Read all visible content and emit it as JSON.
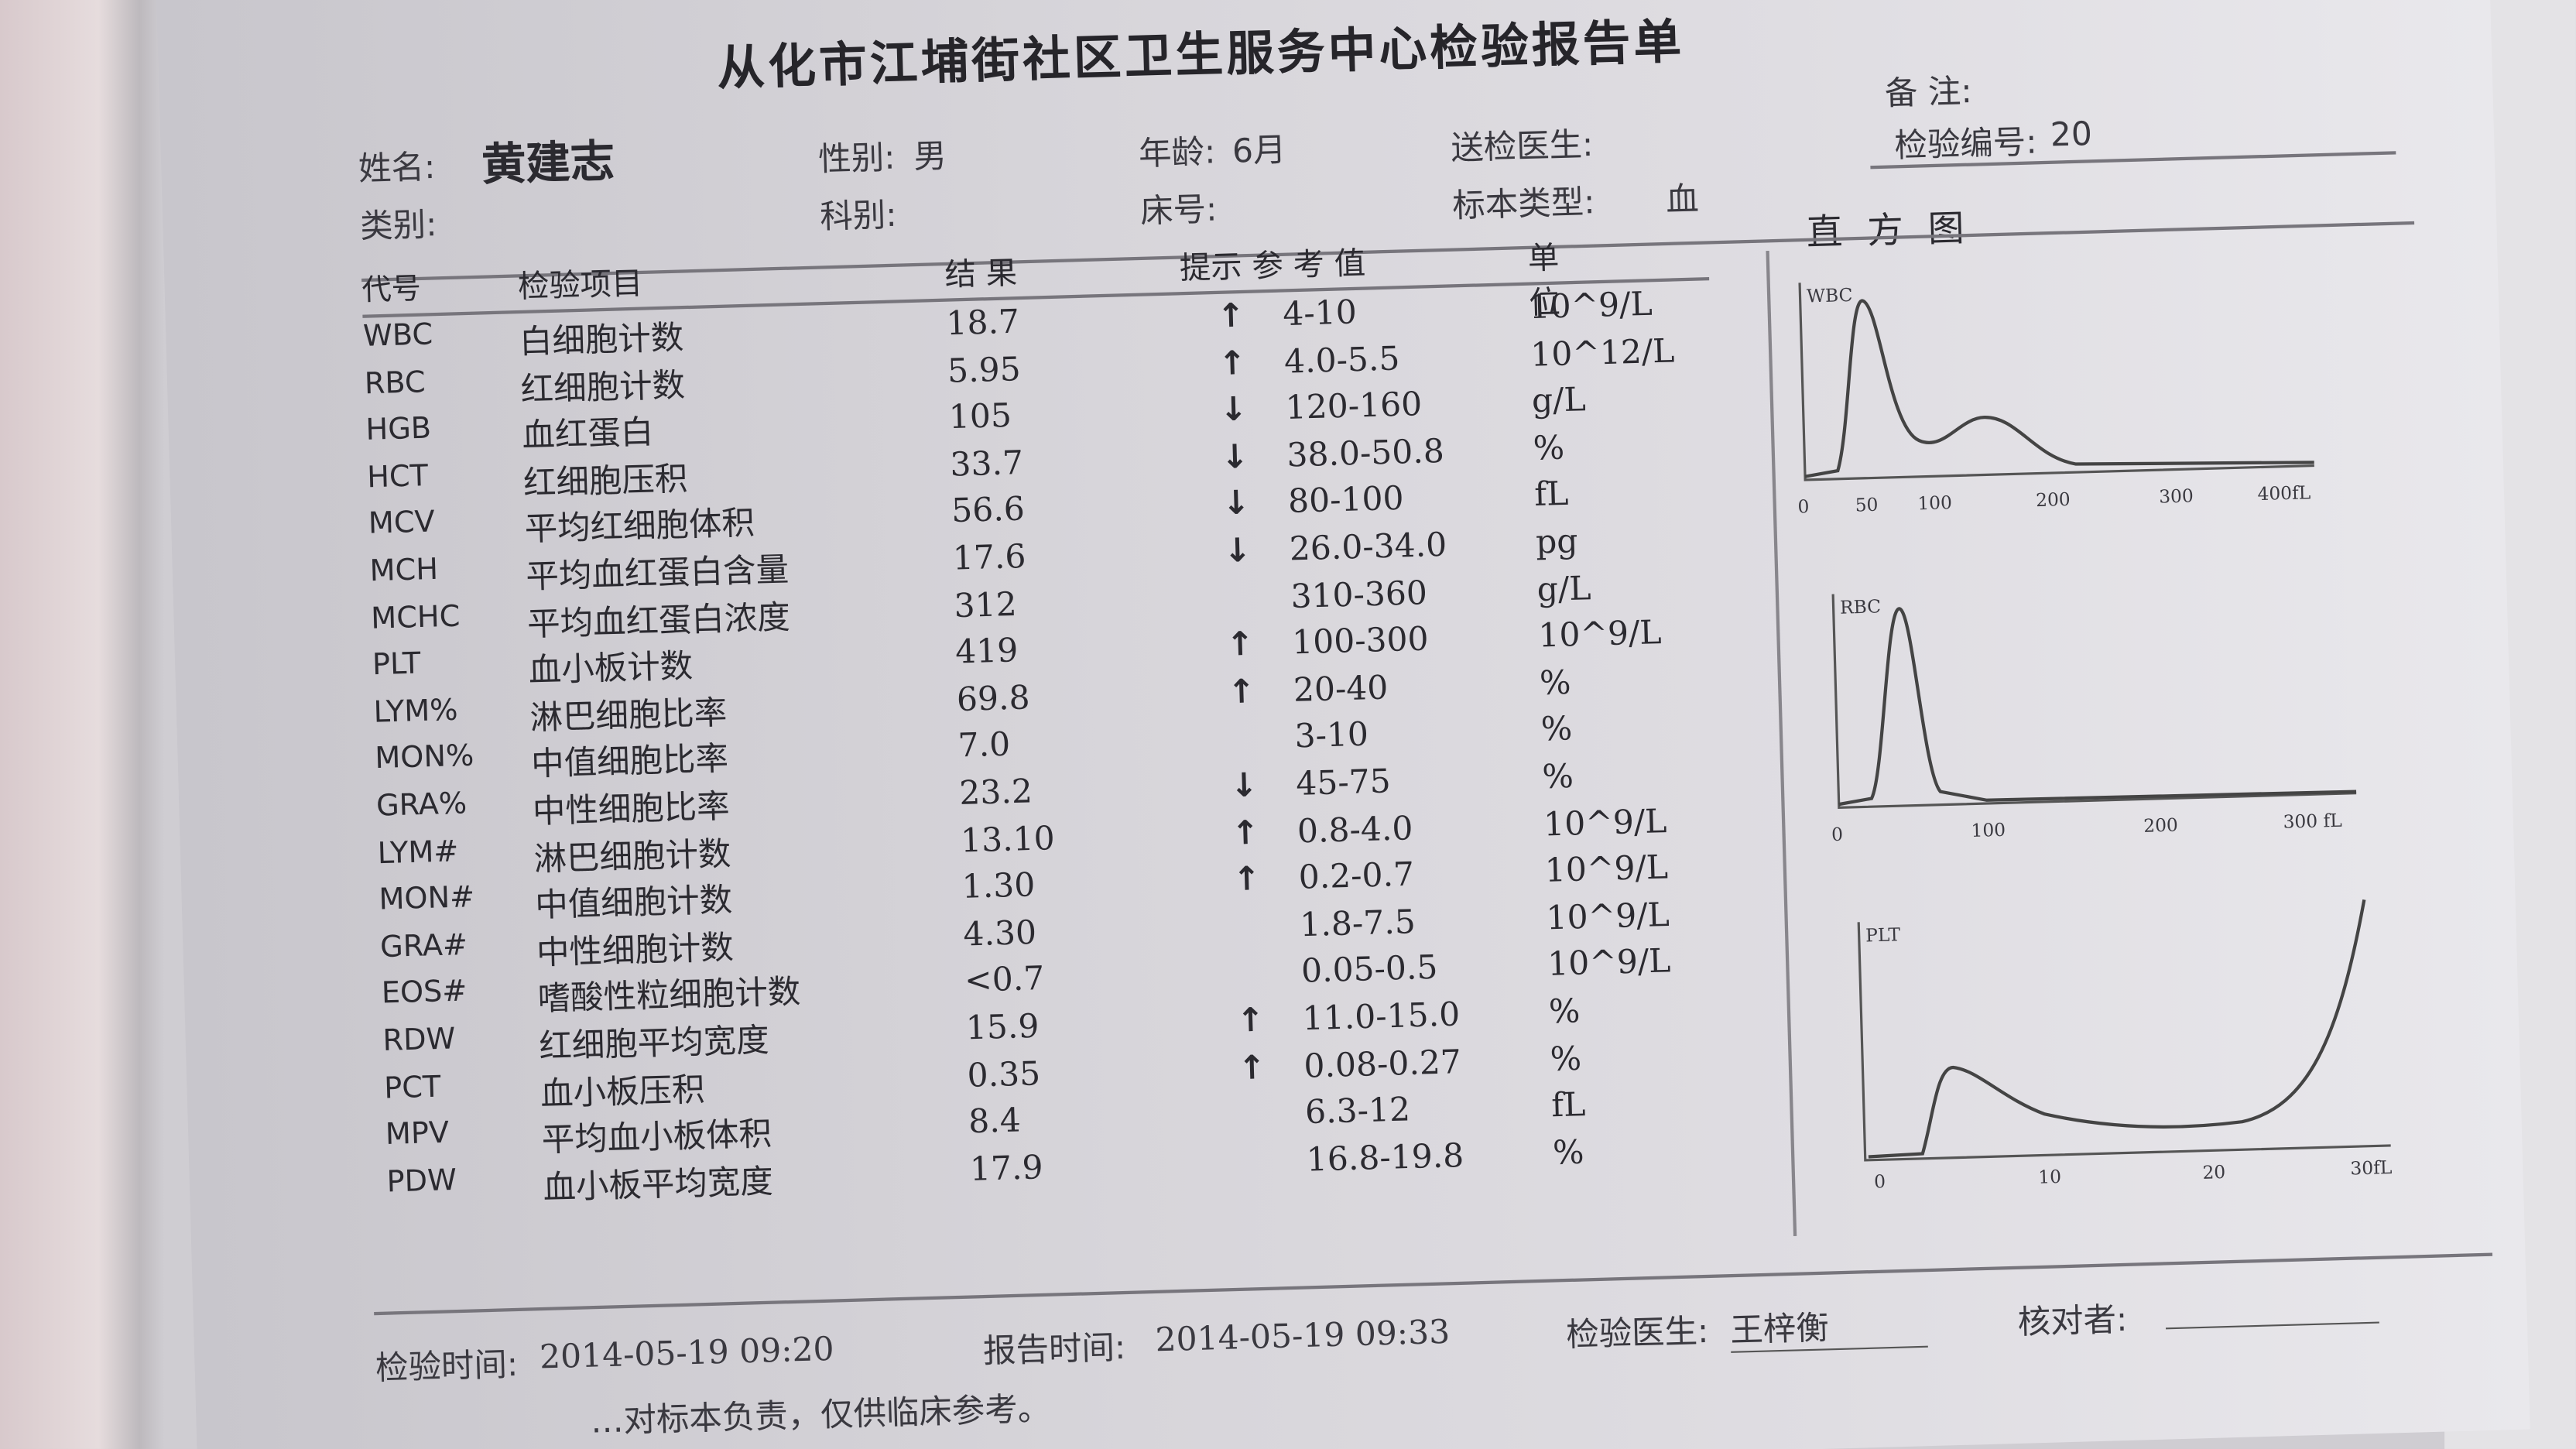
{
  "title": "从化市江埔街社区卫生服务中心检验报告单",
  "remarks_label": "备    注:",
  "patient": {
    "name_label": "姓名:",
    "name": "黄建志",
    "sex_label": "性别:",
    "sex": "男",
    "age_label": "年龄:",
    "age": "6月",
    "doctor_label": "送检医生:",
    "doctor": "",
    "sample_no_label": "检验编号:",
    "sample_no": "20",
    "category_label": "类别:",
    "dept_label": "科别:",
    "bed_label": "床号:",
    "specimen_label": "标本类型:",
    "specimen": "血"
  },
  "table": {
    "headers": {
      "code": "代号",
      "item": "检验项目",
      "result": "结    果",
      "flag_ref": "提示 参 考 值",
      "unit": "单位"
    },
    "rows": [
      {
        "code": "WBC",
        "item": "白细胞计数",
        "result": "18.7",
        "flag": "↑",
        "ref": "4-10",
        "unit": "10^9/L"
      },
      {
        "code": "RBC",
        "item": "红细胞计数",
        "result": "5.95",
        "flag": "↑",
        "ref": "4.0-5.5",
        "unit": "10^12/L"
      },
      {
        "code": "HGB",
        "item": "血红蛋白",
        "result": "105",
        "flag": "↓",
        "ref": "120-160",
        "unit": "g/L"
      },
      {
        "code": "HCT",
        "item": "红细胞压积",
        "result": "33.7",
        "flag": "↓",
        "ref": "38.0-50.8",
        "unit": "%"
      },
      {
        "code": "MCV",
        "item": "平均红细胞体积",
        "result": "56.6",
        "flag": "↓",
        "ref": "80-100",
        "unit": "fL"
      },
      {
        "code": "MCH",
        "item": "平均血红蛋白含量",
        "result": "17.6",
        "flag": "↓",
        "ref": "26.0-34.0",
        "unit": "pg"
      },
      {
        "code": "MCHC",
        "item": "平均血红蛋白浓度",
        "result": "312",
        "flag": "",
        "ref": "310-360",
        "unit": "g/L"
      },
      {
        "code": "PLT",
        "item": "血小板计数",
        "result": "419",
        "flag": "↑",
        "ref": "100-300",
        "unit": "10^9/L"
      },
      {
        "code": "LYM%",
        "item": "淋巴细胞比率",
        "result": "69.8",
        "flag": "↑",
        "ref": "20-40",
        "unit": "%"
      },
      {
        "code": "MON%",
        "item": "中值细胞比率",
        "result": "7.0",
        "flag": "",
        "ref": "3-10",
        "unit": "%"
      },
      {
        "code": "GRA%",
        "item": "中性细胞比率",
        "result": "23.2",
        "flag": "↓",
        "ref": "45-75",
        "unit": "%"
      },
      {
        "code": "LYM#",
        "item": "淋巴细胞计数",
        "result": "13.10",
        "flag": "↑",
        "ref": "0.8-4.0",
        "unit": "10^9/L"
      },
      {
        "code": "MON#",
        "item": "中值细胞计数",
        "result": "1.30",
        "flag": "↑",
        "ref": "0.2-0.7",
        "unit": "10^9/L"
      },
      {
        "code": "GRA#",
        "item": "中性细胞计数",
        "result": "4.30",
        "flag": "",
        "ref": "1.8-7.5",
        "unit": "10^9/L"
      },
      {
        "code": "EOS#",
        "item": "嗜酸性粒细胞计数",
        "result": "<0.7",
        "flag": "",
        "ref": "0.05-0.5",
        "unit": "10^9/L"
      },
      {
        "code": "RDW",
        "item": "红细胞平均宽度",
        "result": "15.9",
        "flag": "↑",
        "ref": "11.0-15.0",
        "unit": "%"
      },
      {
        "code": "PCT",
        "item": "血小板压积",
        "result": "0.35",
        "flag": "↑",
        "ref": "0.08-0.27",
        "unit": "%"
      },
      {
        "code": "MPV",
        "item": "平均血小板体积",
        "result": "8.4",
        "flag": "",
        "ref": "6.3-12",
        "unit": "fL"
      },
      {
        "code": "PDW",
        "item": "血小板平均宽度",
        "result": "17.9",
        "flag": "",
        "ref": "16.8-19.8",
        "unit": "%"
      }
    ]
  },
  "histogram": {
    "title": "直 方 图",
    "wbc": {
      "label": "WBC",
      "ticks": [
        "0",
        "50",
        "100",
        "200",
        "300",
        "400fL"
      ]
    },
    "rbc": {
      "label": "RBC",
      "ticks": [
        "0",
        "100",
        "200",
        "300 fL"
      ]
    },
    "plt": {
      "label": "PLT",
      "ticks": [
        "0",
        "10",
        "20",
        "30fL"
      ]
    }
  },
  "footer": {
    "test_time_label": "检验时间:",
    "test_time": "2014-05-19 09:20",
    "report_time_label": "报告时间:",
    "report_time": "2014-05-19 09:33",
    "tester_label": "检验医生:",
    "tester": "王梓衡",
    "checker_label": "核对者:",
    "checker": "",
    "disclaimer": "…对标本负责，仅供临床参考。"
  }
}
